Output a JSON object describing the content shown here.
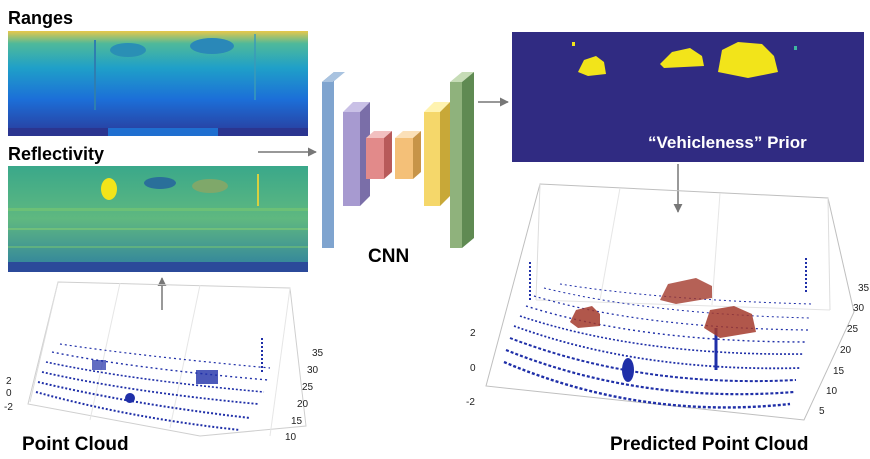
{
  "labels": {
    "ranges": "Ranges",
    "reflectivity": "Reflectivity",
    "cnn": "CNN",
    "prior": "“Vehicleness” Prior",
    "point_cloud": "Point Cloud",
    "predicted_point_cloud": "Predicted Point Cloud"
  },
  "left_cloud_axes": {
    "y_ticks": [
      "35",
      "30",
      "25",
      "20",
      "15",
      "10"
    ],
    "z_ticks": [
      "2",
      "0",
      "-2"
    ]
  },
  "right_cloud_axes": {
    "y_ticks": [
      "35",
      "30",
      "25",
      "20",
      "15",
      "10",
      "5"
    ],
    "z_ticks": [
      "2",
      "0",
      "-2"
    ]
  },
  "colors": {
    "prior_background": "#302b82",
    "prior_highlight": "#f2e41a",
    "point_blue": "#1f2fa8",
    "point_red": "#a33a2c",
    "arrow": "#777777"
  }
}
